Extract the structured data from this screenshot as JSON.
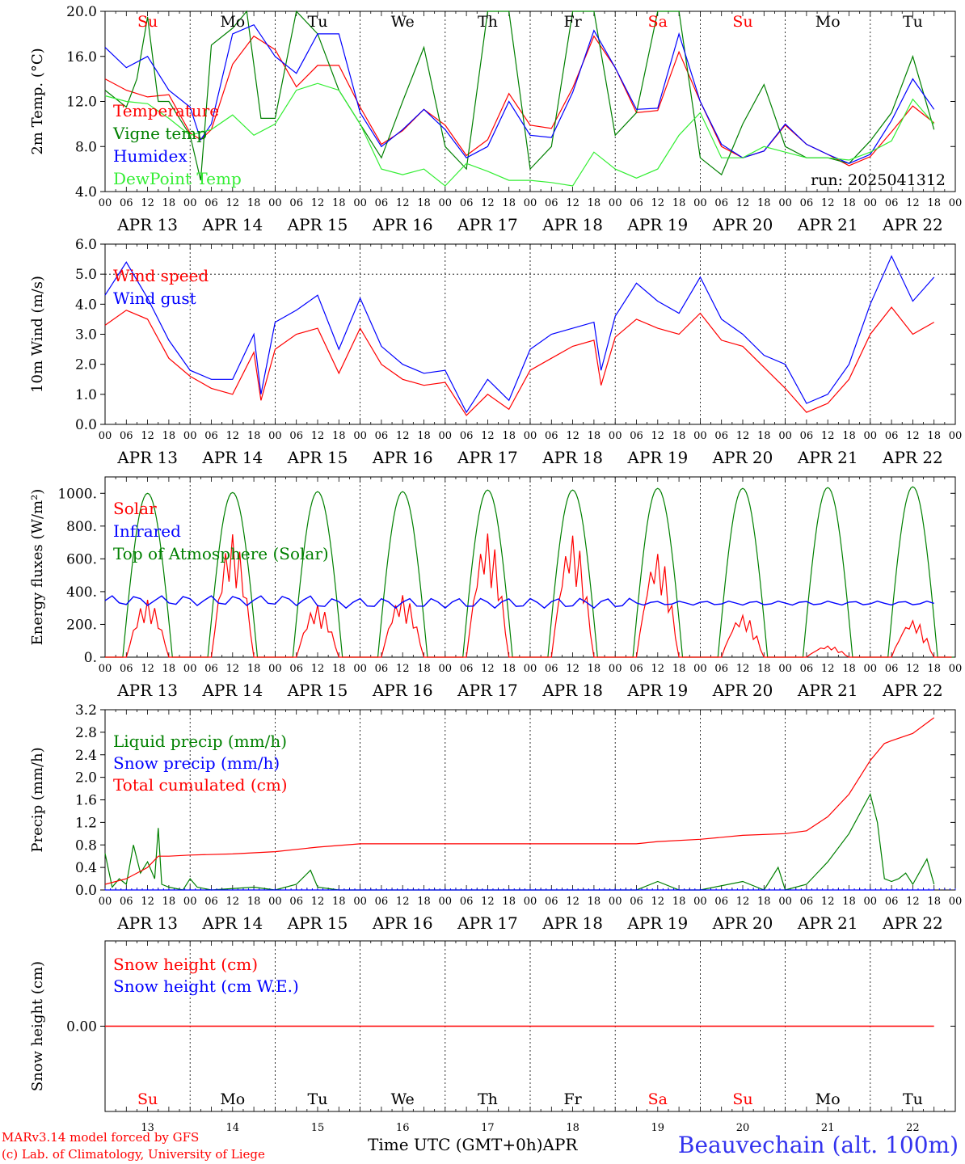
{
  "footer": {
    "model": "MARv3.14 model forced by GFS",
    "credit": "(c) Lab. of Climatology, University of Liege",
    "xlabel": "Time UTC (GMT+0h)",
    "month": "APR",
    "station": "Beauvechain (alt. 100m)"
  },
  "colors": {
    "red": "#ff0000",
    "blue": "#0000ff",
    "green": "#008000",
    "light_green": "#33ee33",
    "axis": "#000000"
  },
  "days": [
    "APR 13",
    "APR 14",
    "APR 15",
    "APR 16",
    "APR 17",
    "APR 18",
    "APR 19",
    "APR 20",
    "APR 21",
    "APR 22"
  ],
  "day_numbers": [
    "13",
    "14",
    "15",
    "16",
    "17",
    "18",
    "19",
    "20",
    "21",
    "22"
  ],
  "weekdays": [
    {
      "label": "Su",
      "color": "#ff0000"
    },
    {
      "label": "Mo",
      "color": "#000000"
    },
    {
      "label": "Tu",
      "color": "#000000"
    },
    {
      "label": "We",
      "color": "#000000"
    },
    {
      "label": "Th",
      "color": "#000000"
    },
    {
      "label": "Fr",
      "color": "#000000"
    },
    {
      "label": "Sa",
      "color": "#ff0000"
    },
    {
      "label": "Su",
      "color": "#ff0000"
    },
    {
      "label": "Mo",
      "color": "#000000"
    },
    {
      "label": "Tu",
      "color": "#000000"
    }
  ],
  "hour_ticks": [
    "00",
    "06",
    "12",
    "18"
  ],
  "chart_data": [
    {
      "type": "line",
      "ylabel": "2m Temp. (°C)",
      "ylim": [
        4.0,
        20.0
      ],
      "yticks": [
        "4.0",
        "8.0",
        "12.0",
        "16.0",
        "20.0"
      ],
      "ytick_values": [
        4,
        8,
        12,
        16,
        20
      ],
      "annotation": "run: 2025041312",
      "x_unit": "hours since APR 13 00 UTC",
      "series": [
        {
          "name": "Temperature",
          "color": "#ff0000",
          "x": [
            0,
            6,
            12,
            18,
            24,
            27,
            30,
            36,
            42,
            48,
            54,
            60,
            66,
            72,
            78,
            84,
            90,
            96,
            102,
            108,
            114,
            120,
            126,
            132,
            138,
            144,
            150,
            156,
            162,
            168,
            174,
            180,
            186,
            192,
            198,
            204,
            210,
            216,
            222,
            228,
            234
          ],
          "y": [
            14.0,
            13.0,
            12.4,
            12.6,
            9.2,
            8.6,
            9.5,
            15.3,
            17.8,
            16.6,
            13.3,
            15.2,
            15.2,
            11.5,
            8.2,
            9.4,
            11.3,
            9.9,
            7.2,
            8.6,
            12.7,
            9.9,
            9.6,
            13.2,
            17.8,
            15.0,
            11.0,
            11.2,
            16.4,
            12.0,
            8.0,
            7.0,
            7.6,
            9.9,
            8.2,
            7.3,
            6.3,
            7.1,
            9.3,
            11.6,
            10.1
          ]
        },
        {
          "name": "Vigne temp",
          "color": "#008000",
          "x": [
            0,
            6,
            9,
            12,
            15,
            18,
            24,
            27,
            30,
            36,
            40,
            44,
            48,
            54,
            60,
            66,
            72,
            78,
            84,
            90,
            96,
            102,
            108,
            114,
            120,
            126,
            132,
            138,
            144,
            150,
            156,
            162,
            168,
            174,
            180,
            186,
            192,
            198,
            204,
            210,
            216,
            222,
            228,
            234
          ],
          "y": [
            13.0,
            11.5,
            14.0,
            19.5,
            12.0,
            12.0,
            9.0,
            5.0,
            17.0,
            18.5,
            20.0,
            10.5,
            10.5,
            20.0,
            18.0,
            13.0,
            10.0,
            7.0,
            12.0,
            16.8,
            8.0,
            6.0,
            20.0,
            20.0,
            6.0,
            8.0,
            20.0,
            20.0,
            9.0,
            11.0,
            20.0,
            20.0,
            7.0,
            5.5,
            10.0,
            13.5,
            8.0,
            7.0,
            7.0,
            6.5,
            8.5,
            11.0,
            16.0,
            9.5
          ]
        },
        {
          "name": "Humidex",
          "color": "#0000ff",
          "x": [
            0,
            6,
            12,
            18,
            24,
            27,
            30,
            36,
            42,
            48,
            54,
            60,
            66,
            72,
            78,
            84,
            90,
            96,
            102,
            108,
            114,
            120,
            126,
            132,
            138,
            144,
            150,
            156,
            162,
            168,
            174,
            180,
            186,
            192,
            198,
            204,
            210,
            216,
            222,
            228,
            234
          ],
          "y": [
            16.8,
            15.0,
            16.0,
            13.0,
            11.5,
            8.6,
            10.0,
            18.0,
            18.8,
            16.0,
            14.5,
            18.0,
            18.0,
            11.0,
            8.0,
            9.5,
            11.3,
            9.5,
            7.0,
            8.0,
            12.0,
            9.0,
            8.8,
            12.8,
            18.3,
            15.0,
            11.3,
            11.4,
            18.0,
            12.0,
            8.2,
            7.0,
            7.6,
            10.0,
            8.2,
            7.3,
            6.5,
            7.3,
            10.3,
            14.0,
            11.3
          ]
        },
        {
          "name": "DewPoint Temp",
          "color": "#33ee33",
          "x": [
            0,
            6,
            12,
            18,
            24,
            30,
            36,
            42,
            48,
            54,
            60,
            66,
            72,
            78,
            84,
            90,
            96,
            102,
            108,
            114,
            120,
            126,
            132,
            138,
            144,
            150,
            156,
            162,
            168,
            174,
            180,
            186,
            192,
            198,
            204,
            210,
            216,
            222,
            228,
            234
          ],
          "y": [
            12.5,
            12.0,
            11.8,
            10.5,
            9.0,
            9.5,
            10.8,
            9.0,
            10.0,
            13.0,
            13.6,
            13.0,
            10.0,
            6.0,
            5.5,
            6.0,
            4.5,
            6.5,
            5.8,
            5.0,
            5.0,
            4.8,
            4.5,
            7.5,
            6.0,
            5.2,
            6.0,
            9.0,
            11.0,
            7.0,
            7.0,
            8.0,
            7.5,
            7.0,
            7.0,
            6.8,
            7.5,
            8.5,
            12.2,
            10.0
          ]
        }
      ]
    },
    {
      "type": "line",
      "ylabel": "10m Wind (m/s)",
      "ylim": [
        0.0,
        6.0
      ],
      "yticks": [
        "0.0",
        "1.0",
        "2.0",
        "3.0",
        "4.0",
        "5.0",
        "6.0"
      ],
      "ytick_values": [
        0,
        1,
        2,
        3,
        4,
        5,
        6
      ],
      "hline": 5.0,
      "x_unit": "hours since APR 13 00 UTC",
      "series": [
        {
          "name": "Wind speed",
          "color": "#ff0000",
          "x": [
            0,
            6,
            12,
            18,
            24,
            30,
            36,
            42,
            44,
            48,
            54,
            60,
            66,
            72,
            78,
            84,
            90,
            96,
            102,
            108,
            114,
            120,
            126,
            132,
            138,
            140,
            144,
            150,
            156,
            162,
            168,
            174,
            180,
            186,
            192,
            198,
            204,
            210,
            216,
            222,
            228,
            234
          ],
          "y": [
            3.3,
            3.8,
            3.5,
            2.2,
            1.6,
            1.2,
            1.0,
            2.4,
            0.8,
            2.5,
            3.0,
            3.2,
            1.7,
            3.2,
            2.0,
            1.5,
            1.3,
            1.4,
            0.3,
            1.0,
            0.5,
            1.8,
            2.2,
            2.6,
            2.8,
            1.3,
            2.9,
            3.5,
            3.2,
            3.0,
            3.7,
            2.8,
            2.6,
            1.9,
            1.2,
            0.4,
            0.7,
            1.5,
            3.0,
            3.9,
            3.0,
            3.4
          ]
        },
        {
          "name": "Wind gust",
          "color": "#0000ff",
          "x": [
            0,
            6,
            12,
            18,
            24,
            30,
            36,
            42,
            44,
            48,
            54,
            60,
            66,
            72,
            78,
            84,
            90,
            96,
            102,
            108,
            114,
            120,
            126,
            132,
            138,
            140,
            144,
            150,
            156,
            162,
            168,
            174,
            180,
            186,
            192,
            198,
            204,
            210,
            216,
            222,
            228,
            234
          ],
          "y": [
            4.3,
            5.4,
            4.2,
            2.8,
            1.8,
            1.5,
            1.5,
            3.0,
            1.0,
            3.4,
            3.8,
            4.3,
            2.5,
            4.2,
            2.6,
            2.0,
            1.7,
            1.8,
            0.4,
            1.5,
            0.8,
            2.5,
            3.0,
            3.2,
            3.4,
            1.8,
            3.6,
            4.7,
            4.1,
            3.7,
            4.9,
            3.5,
            3.0,
            2.3,
            2.0,
            0.7,
            1.0,
            2.0,
            4.0,
            5.6,
            4.1,
            4.9
          ]
        }
      ]
    },
    {
      "type": "line",
      "ylabel": "Energy fluxes (W/m²)",
      "ylim": [
        0,
        1100
      ],
      "yticks": [
        "0.",
        "200.",
        "400.",
        "600.",
        "800.",
        "1000."
      ],
      "ytick_values": [
        0,
        200,
        400,
        600,
        800,
        1000
      ],
      "x_unit": "hours since APR 13 00 UTC",
      "top_of_atmosphere_peaks": [
        1000,
        1005,
        1010,
        1010,
        1020,
        1020,
        1030,
        1030,
        1035,
        1040
      ],
      "series": [
        {
          "name": "Solar",
          "color": "#ff0000",
          "daily_peaks": [
            350,
            750,
            320,
            380,
            760,
            750,
            640,
            260,
            70,
            230
          ]
        },
        {
          "name": "Infrared",
          "color": "#0000ff",
          "level": 330
        },
        {
          "name": "Top of Atmosphere (Solar)",
          "color": "#008000"
        }
      ]
    },
    {
      "type": "line",
      "ylabel": "Precip (mm/h)",
      "ylim": [
        0.0,
        3.2
      ],
      "yticks": [
        "0.0",
        "0.4",
        "0.8",
        "1.2",
        "1.6",
        "2.0",
        "2.4",
        "2.8",
        "3.2"
      ],
      "ytick_values": [
        0,
        0.4,
        0.8,
        1.2,
        1.6,
        2.0,
        2.4,
        2.8,
        3.2
      ],
      "x_unit": "hours since APR 13 00 UTC",
      "series": [
        {
          "name": "Liquid precip (mm/h)",
          "color": "#008000",
          "x": [
            0,
            2,
            4,
            6,
            8,
            10,
            12,
            14,
            15,
            16,
            18,
            22,
            24,
            26,
            30,
            42,
            48,
            54,
            58,
            60,
            66,
            72,
            96,
            150,
            156,
            162,
            168,
            180,
            186,
            190,
            192,
            198,
            204,
            210,
            216,
            218,
            220,
            222,
            224,
            226,
            228,
            232,
            234
          ],
          "y": [
            0.65,
            0.05,
            0.2,
            0.1,
            0.8,
            0.3,
            0.5,
            0.2,
            1.1,
            0.1,
            0.05,
            0.0,
            0.2,
            0.05,
            0.0,
            0.05,
            0.0,
            0.1,
            0.35,
            0.05,
            0.0,
            0.0,
            0.0,
            0.0,
            0.15,
            0.0,
            0.0,
            0.15,
            0.0,
            0.4,
            0.0,
            0.1,
            0.5,
            1.0,
            1.7,
            1.2,
            0.2,
            0.15,
            0.2,
            0.3,
            0.1,
            0.55,
            0.1
          ]
        },
        {
          "name": "Snow precip (mm/h)",
          "color": "#0000ff",
          "x": [
            0,
            234
          ],
          "y": [
            0,
            0
          ]
        },
        {
          "name": "Total cumulated (cm)",
          "color": "#ff0000",
          "x": [
            0,
            6,
            12,
            15,
            18,
            24,
            36,
            48,
            60,
            72,
            96,
            150,
            156,
            168,
            180,
            192,
            198,
            204,
            210,
            216,
            220,
            222,
            228,
            234
          ],
          "y": [
            0.1,
            0.2,
            0.4,
            0.6,
            0.6,
            0.62,
            0.64,
            0.68,
            0.76,
            0.82,
            0.82,
            0.82,
            0.86,
            0.9,
            0.97,
            1.0,
            1.05,
            1.3,
            1.7,
            2.3,
            2.6,
            2.65,
            2.78,
            3.06
          ]
        }
      ]
    },
    {
      "type": "line",
      "ylabel": "Snow height (cm)",
      "yticks": [
        "0.00"
      ],
      "ytick_values": [
        0
      ],
      "ylim": [
        -1,
        1
      ],
      "x_unit": "hours since APR 13 00 UTC",
      "series": [
        {
          "name": "Snow height (cm)",
          "color": "#ff0000",
          "x": [
            0,
            234
          ],
          "y": [
            0,
            0
          ]
        },
        {
          "name": "Snow height (cm W.E.)",
          "color": "#0000ff"
        }
      ]
    }
  ]
}
